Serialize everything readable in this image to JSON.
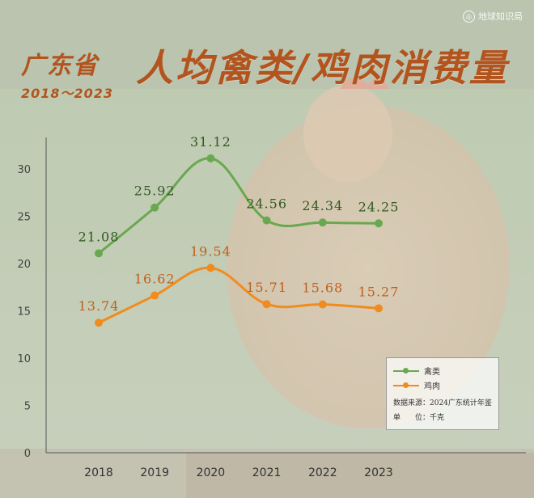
{
  "header": {
    "region": "广东省",
    "years": "2018～2023",
    "title": "人均禽类/鸡肉消费量",
    "watermark": "地球知识局"
  },
  "legend": {
    "source": "数据来源：2024广东统计年鉴",
    "unit": "单　　位：千克"
  },
  "colors": {
    "poultry": "#6aa84f",
    "chicken": "#f08c1e",
    "title": "#b3541e"
  },
  "chart_data": {
    "type": "line",
    "categories": [
      "2018",
      "2019",
      "2020",
      "2021",
      "2022",
      "2023"
    ],
    "ylim": [
      0,
      32
    ],
    "yticks": [
      0,
      5,
      10,
      15,
      20,
      25,
      30
    ],
    "grid": false,
    "legend_position": "bottom-right",
    "series": [
      {
        "name": "禽类",
        "values": [
          21.08,
          25.92,
          31.12,
          24.56,
          24.34,
          24.25
        ],
        "labels": [
          "21.08",
          "25.92",
          "31.12",
          "24.56",
          "24.34",
          "24.25"
        ]
      },
      {
        "name": "鸡肉",
        "values": [
          13.74,
          16.62,
          19.54,
          15.71,
          15.68,
          15.27
        ],
        "labels": [
          "13.74",
          "16.62",
          "19.54",
          "15.71",
          "15.68",
          "15.27"
        ]
      }
    ]
  }
}
